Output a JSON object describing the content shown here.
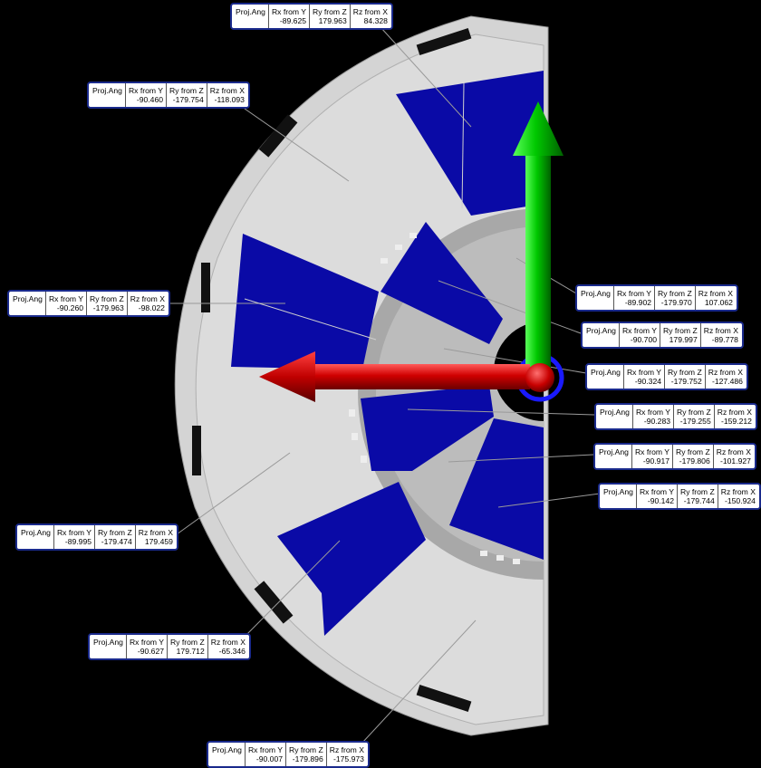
{
  "viewport": {
    "background": "#000000",
    "colors": {
      "plate": "#d6d6d6",
      "plate_inner": "#b4b4b4",
      "sector": "#0a0aa6",
      "arrow_x": "#cc0000",
      "arrow_y": "#00c000",
      "origin_ring": "#1a1aff"
    }
  },
  "callouts": [
    {
      "id": "c1",
      "title": "Proj.Ang",
      "rx_hdr": "Rx from Y",
      "ry_hdr": "Ry from Z",
      "rz_hdr": "Rz from X",
      "rx": "-89.625",
      "ry": "179.963",
      "rz": "84.328"
    },
    {
      "id": "c2",
      "title": "Proj.Ang",
      "rx_hdr": "Rx from Y",
      "ry_hdr": "Ry from Z",
      "rz_hdr": "Rz from X",
      "rx": "-90.460",
      "ry": "-179.754",
      "rz": "-118.093"
    },
    {
      "id": "c3",
      "title": "Proj.Ang",
      "rx_hdr": "Rx from Y",
      "ry_hdr": "Ry from Z",
      "rz_hdr": "Rz from X",
      "rx": "-90.260",
      "ry": "-179.963",
      "rz": "-98.022"
    },
    {
      "id": "c4",
      "title": "Proj.Ang",
      "rx_hdr": "Rx from Y",
      "ry_hdr": "Ry from Z",
      "rz_hdr": "Rz from X",
      "rx": "-89.902",
      "ry": "-179.970",
      "rz": "107.062"
    },
    {
      "id": "c5",
      "title": "Proj.Ang",
      "rx_hdr": "Rx from Y",
      "ry_hdr": "Ry from Z",
      "rz_hdr": "Rz from X",
      "rx": "-90.700",
      "ry": "179.997",
      "rz": "-89.778"
    },
    {
      "id": "c6",
      "title": "Proj.Ang",
      "rx_hdr": "Rx from Y",
      "ry_hdr": "Ry from Z",
      "rz_hdr": "Rz from X",
      "rx": "-90.324",
      "ry": "-179.752",
      "rz": "-127.486"
    },
    {
      "id": "c7",
      "title": "Proj.Ang",
      "rx_hdr": "Rx from Y",
      "ry_hdr": "Ry from Z",
      "rz_hdr": "Rz from X",
      "rx": "-90.283",
      "ry": "-179.255",
      "rz": "-159.212"
    },
    {
      "id": "c8",
      "title": "Proj.Ang",
      "rx_hdr": "Rx from Y",
      "ry_hdr": "Ry from Z",
      "rz_hdr": "Rz from X",
      "rx": "-90.917",
      "ry": "-179.806",
      "rz": "-101.927"
    },
    {
      "id": "c9",
      "title": "Proj.Ang",
      "rx_hdr": "Rx from Y",
      "ry_hdr": "Ry from Z",
      "rz_hdr": "Rz from X",
      "rx": "-90.142",
      "ry": "-179.744",
      "rz": "-150.924"
    },
    {
      "id": "c10",
      "title": "Proj.Ang",
      "rx_hdr": "Rx from Y",
      "ry_hdr": "Ry from Z",
      "rz_hdr": "Rz from X",
      "rx": "-89.995",
      "ry": "-179.474",
      "rz": "179.459"
    },
    {
      "id": "c11",
      "title": "Proj.Ang",
      "rx_hdr": "Rx from Y",
      "ry_hdr": "Ry from Z",
      "rz_hdr": "Rz from X",
      "rx": "-90.627",
      "ry": "179.712",
      "rz": "-65.346"
    },
    {
      "id": "c12",
      "title": "Proj.Ang",
      "rx_hdr": "Rx from Y",
      "ry_hdr": "Ry from Z",
      "rz_hdr": "Rz from X",
      "rx": "-90.007",
      "ry": "-179.896",
      "rz": "-175.973"
    }
  ]
}
